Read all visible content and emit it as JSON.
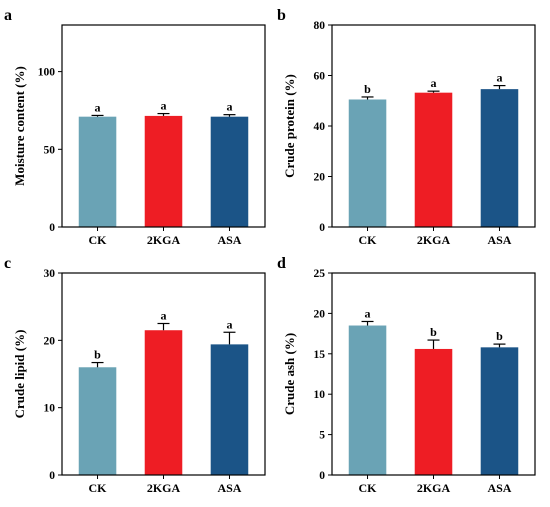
{
  "chart_data": [
    {
      "type": "bar",
      "panel": "a",
      "categories": [
        "CK",
        "2KGA",
        "ASA"
      ],
      "values": [
        71,
        71.5,
        71
      ],
      "errors": [
        0.8,
        1.5,
        1.3
      ],
      "significance": [
        "a",
        "a",
        "a"
      ],
      "ylabel": "Moisture content (%)",
      "ylim": [
        0,
        130
      ],
      "yticks": [
        0,
        50,
        100
      ],
      "colors": [
        "#6aa3b5",
        "#ee1d24",
        "#1b5487"
      ]
    },
    {
      "type": "bar",
      "panel": "b",
      "categories": [
        "CK",
        "2KGA",
        "ASA"
      ],
      "values": [
        50.5,
        53.2,
        54.6
      ],
      "errors": [
        1.0,
        0.6,
        1.4
      ],
      "significance": [
        "b",
        "a",
        "a"
      ],
      "ylabel": "Crude protein (%)",
      "ylim": [
        0,
        80
      ],
      "yticks": [
        0,
        20,
        40,
        60,
        80
      ],
      "colors": [
        "#6aa3b5",
        "#ee1d24",
        "#1b5487"
      ]
    },
    {
      "type": "bar",
      "panel": "c",
      "categories": [
        "CK",
        "2KGA",
        "ASA"
      ],
      "values": [
        16,
        21.5,
        19.4
      ],
      "errors": [
        0.7,
        1.0,
        1.8
      ],
      "significance": [
        "b",
        "a",
        "a"
      ],
      "ylabel": "Crude lipid (%)",
      "ylim": [
        0,
        30
      ],
      "yticks": [
        0,
        10,
        20,
        30
      ],
      "colors": [
        "#6aa3b5",
        "#ee1d24",
        "#1b5487"
      ]
    },
    {
      "type": "bar",
      "panel": "d",
      "categories": [
        "CK",
        "2KGA",
        "ASA"
      ],
      "values": [
        18.5,
        15.6,
        15.8
      ],
      "errors": [
        0.5,
        1.1,
        0.4
      ],
      "significance": [
        "a",
        "b",
        "b"
      ],
      "ylabel": "Crude ash (%)",
      "ylim": [
        0,
        25
      ],
      "yticks": [
        0,
        5,
        10,
        15,
        20,
        25
      ],
      "colors": [
        "#6aa3b5",
        "#ee1d24",
        "#1b5487"
      ]
    }
  ]
}
